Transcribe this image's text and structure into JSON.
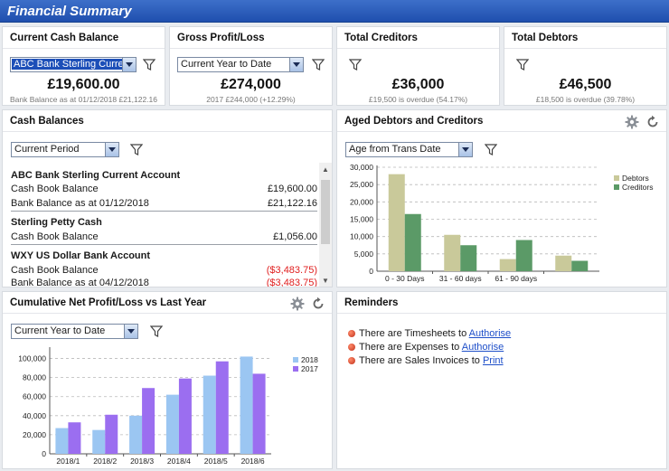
{
  "window": {
    "title": "Financial Summary"
  },
  "current_cash": {
    "title": "Current Cash Balance",
    "selector": "ABC Bank Sterling Current",
    "amount": "£19,600.00",
    "sub": "Bank Balance as at 01/12/2018 £21,122.16"
  },
  "gross_profit": {
    "title": "Gross Profit/Loss",
    "selector": "Current Year to Date",
    "amount": "£274,000",
    "sub": "2017 £244,000 (+12.29%)"
  },
  "creditors": {
    "title": "Total Creditors",
    "amount": "£36,000",
    "sub": "£19,500 is overdue (54.17%)"
  },
  "debtors": {
    "title": "Total Debtors",
    "amount": "£46,500",
    "sub": "£18,500 is overdue (39.78%)"
  },
  "cash_balances": {
    "title": "Cash Balances",
    "selector": "Current Period",
    "accounts": [
      {
        "name": "ABC Bank Sterling Current Account",
        "rows": [
          {
            "label": "Cash Book Balance",
            "value": "£19,600.00",
            "negative": false
          },
          {
            "label": "Bank Balance as at 01/12/2018",
            "value": "£21,122.16",
            "negative": false
          }
        ]
      },
      {
        "name": "Sterling Petty Cash",
        "rows": [
          {
            "label": "Cash Book Balance",
            "value": "£1,056.00",
            "negative": false
          }
        ]
      },
      {
        "name": "WXY US Dollar Bank Account",
        "rows": [
          {
            "label": "Cash Book Balance",
            "value": "($3,483.75)",
            "negative": true
          },
          {
            "label": "Bank Balance as at 04/12/2018",
            "value": "($3,483.75)",
            "negative": true
          }
        ]
      }
    ]
  },
  "aged": {
    "title": "Aged Debtors and Creditors",
    "selector": "Age from Trans Date"
  },
  "net_profit": {
    "title": "Cumulative Net Profit/Loss vs Last Year",
    "selector": "Current Year to Date"
  },
  "reminders": {
    "title": "Reminders",
    "items": [
      {
        "text": "There are Timesheets to ",
        "link": "Authorise"
      },
      {
        "text": "There are Expenses to ",
        "link": "Authorise"
      },
      {
        "text": "There are Sales Invoices to ",
        "link": "Print"
      }
    ]
  },
  "colors": {
    "titlebar": "#2757b8",
    "debtors": "#c9c99a",
    "creditors": "#5b9a67",
    "y2018": "#9bc6f2",
    "y2017": "#9b6ef0",
    "negative": "#e02020",
    "link": "#1e4fc9"
  },
  "icons": [
    "filter-icon",
    "gear-icon",
    "refresh-icon",
    "bullet-icon",
    "chevron-down-icon"
  ],
  "chart_data": [
    {
      "type": "bar",
      "categories": [
        "0 - 30 Days",
        "31 - 60 days",
        "61 - 90 days",
        ""
      ],
      "series": [
        {
          "name": "Debtors",
          "values": [
            28000,
            10500,
            3500,
            4500
          ]
        },
        {
          "name": "Creditors",
          "values": [
            16500,
            7500,
            9000,
            3000
          ]
        }
      ],
      "ylim": [
        0,
        30000
      ],
      "yticks": [
        "0",
        "5,000",
        "10,000",
        "15,000",
        "20,000",
        "25,000",
        "30,000"
      ],
      "grid": true,
      "legend": "right"
    },
    {
      "type": "bar",
      "categories": [
        "2018/1",
        "2018/2",
        "2018/3",
        "2018/4",
        "2018/5",
        "2018/6"
      ],
      "series": [
        {
          "name": "2018",
          "values": [
            27000,
            25000,
            40000,
            62000,
            82000,
            102000
          ]
        },
        {
          "name": "2017",
          "values": [
            33000,
            41000,
            69000,
            79000,
            97000,
            84000
          ]
        }
      ],
      "ylim": [
        0,
        110000
      ],
      "yticks": [
        "0",
        "20,000",
        "40,000",
        "60,000",
        "80,000",
        "100,000"
      ],
      "grid": true,
      "legend": "right"
    }
  ]
}
